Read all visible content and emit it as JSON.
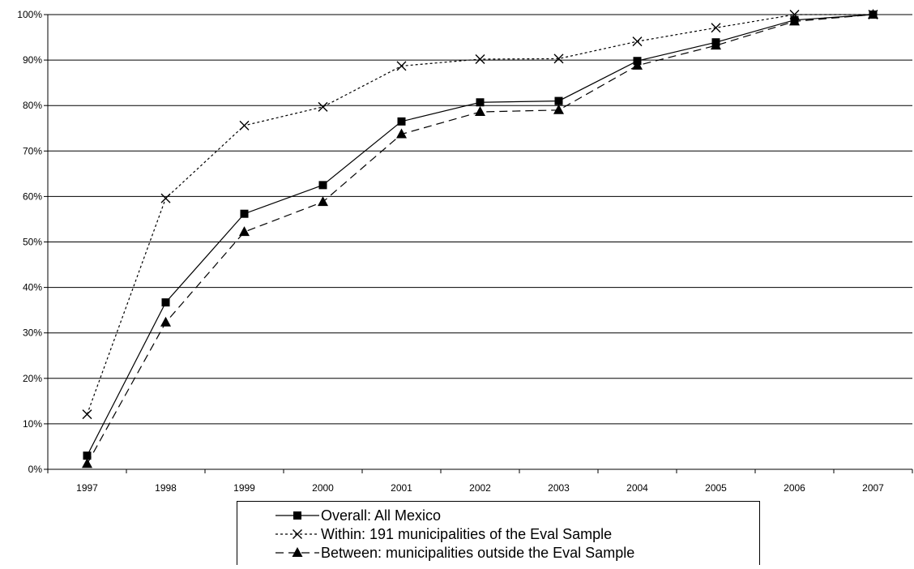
{
  "chart_data": {
    "type": "line",
    "title": "",
    "xlabel": "",
    "ylabel": "",
    "categories": [
      "1997",
      "1998",
      "1999",
      "2000",
      "2001",
      "2002",
      "2003",
      "2004",
      "2005",
      "2006",
      "2007"
    ],
    "y_ticks": [
      "0%",
      "10%",
      "20%",
      "30%",
      "40%",
      "50%",
      "60%",
      "70%",
      "80%",
      "90%",
      "100%"
    ],
    "ylim": [
      0,
      100
    ],
    "grid": "horizontal",
    "legend_position": "bottom",
    "series": [
      {
        "name": "Overall: All Mexico",
        "values": [
          3,
          36.7,
          56.2,
          62.5,
          76.5,
          80.7,
          81.0,
          89.8,
          93.9,
          98.8,
          100
        ],
        "line_style": "solid",
        "marker": "square",
        "color": "#000000"
      },
      {
        "name": "Within: 191 municipalities of the Eval Sample",
        "values": [
          12.1,
          59.6,
          75.6,
          79.7,
          88.7,
          90.2,
          90.3,
          94.1,
          97.1,
          100,
          100
        ],
        "line_style": "dotted",
        "marker": "x",
        "color": "#000000"
      },
      {
        "name": "Between: municipalities outside the Eval Sample",
        "values": [
          1.2,
          32.3,
          52.2,
          58.8,
          73.7,
          78.6,
          79.0,
          88.8,
          93.2,
          98.5,
          100
        ],
        "line_style": "dashed",
        "marker": "triangle",
        "color": "#000000"
      }
    ]
  }
}
